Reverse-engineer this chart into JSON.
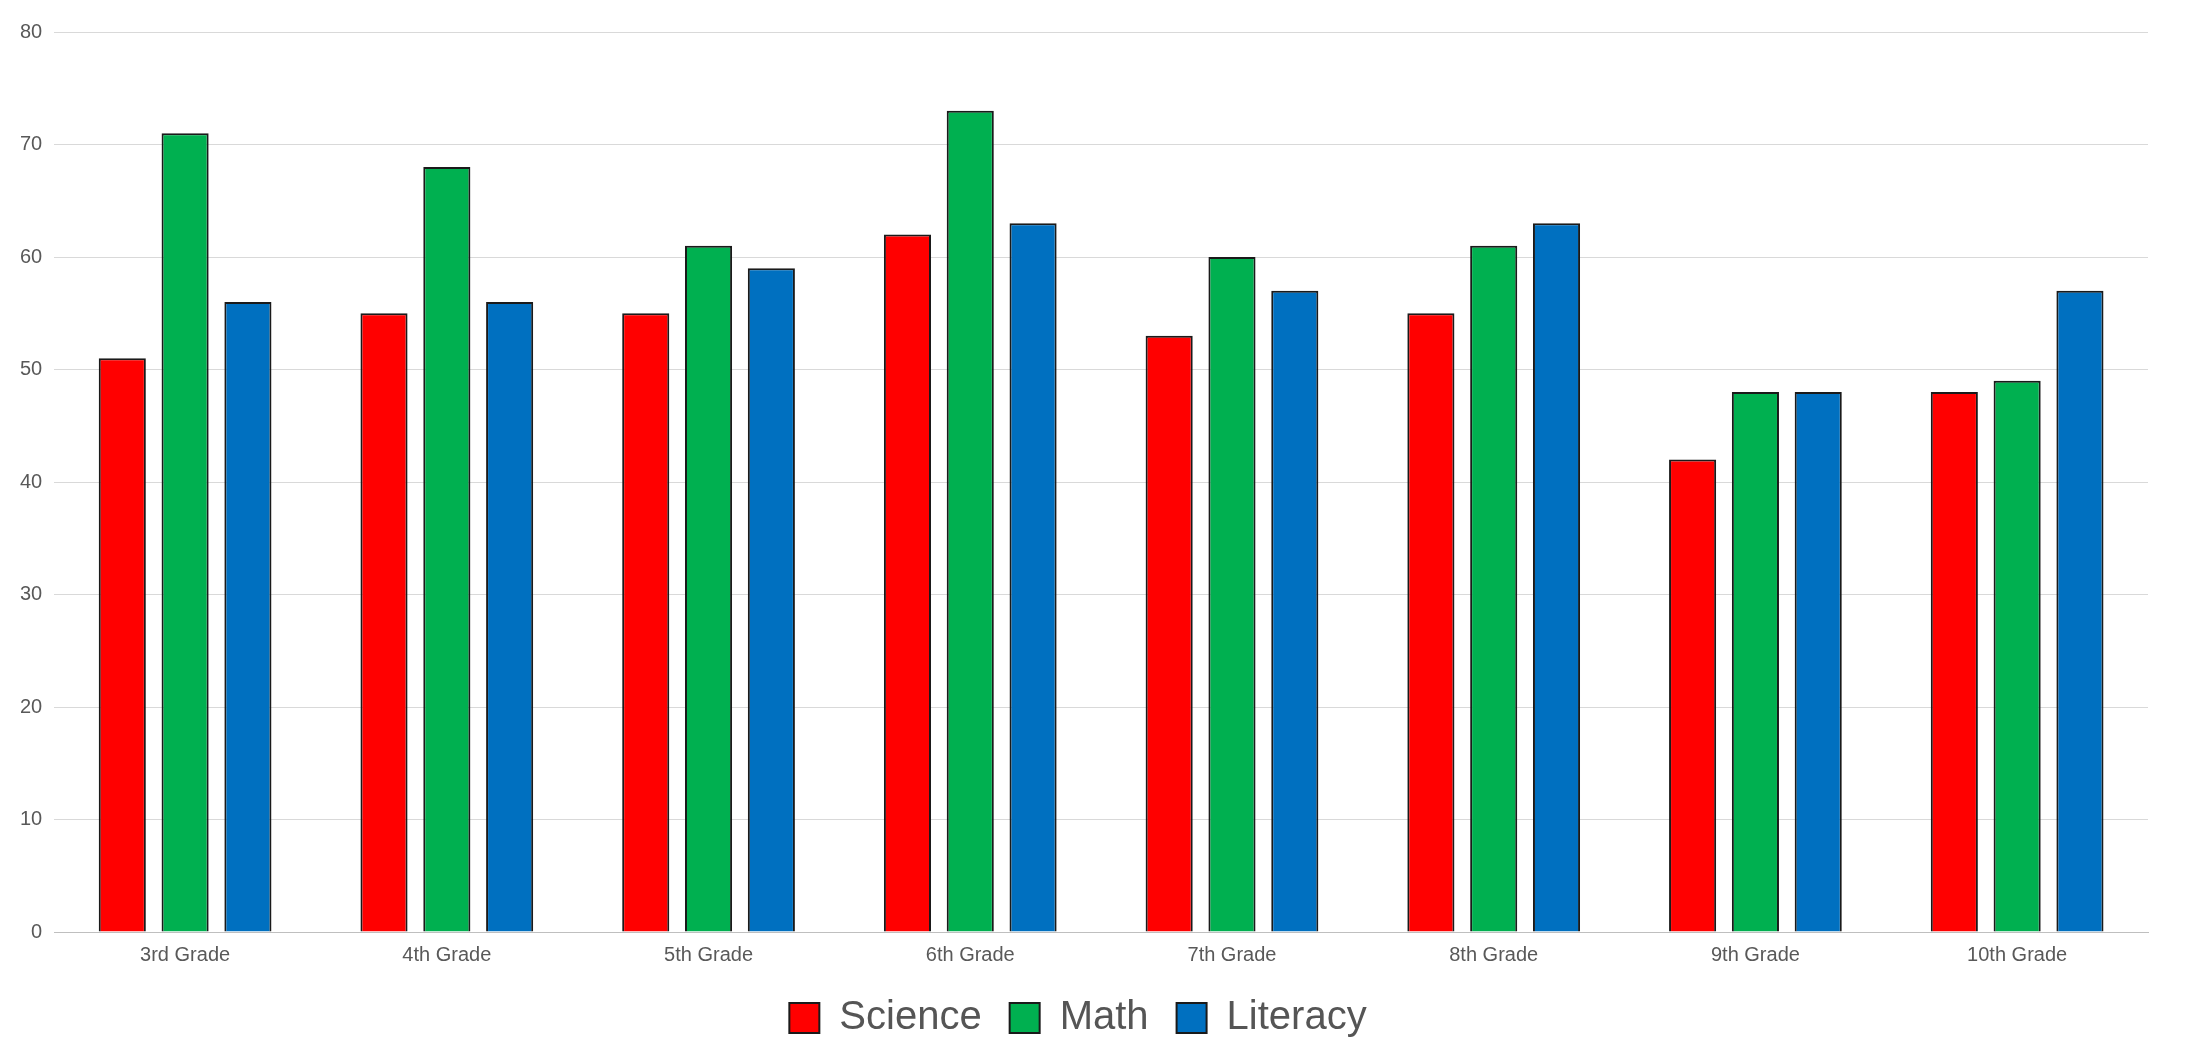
{
  "chart_data": {
    "type": "bar",
    "categories": [
      "3rd Grade",
      "4th Grade",
      "5th Grade",
      "6th Grade",
      "7th Grade",
      "8th Grade",
      "9th Grade",
      "10th Grade"
    ],
    "series": [
      {
        "name": "Science",
        "color": "#ff0000",
        "values": [
          51,
          55,
          55,
          62,
          53,
          55,
          42,
          48
        ]
      },
      {
        "name": "Math",
        "color": "#00b050",
        "values": [
          71,
          68,
          61,
          73,
          60,
          61,
          48,
          49
        ]
      },
      {
        "name": "Literacy",
        "color": "#0070c0",
        "values": [
          56,
          56,
          59,
          63,
          57,
          63,
          48,
          57
        ]
      }
    ],
    "ylim": [
      0,
      80
    ],
    "yticks": [
      0,
      10,
      20,
      30,
      40,
      50,
      60,
      70,
      80
    ],
    "grid": "y",
    "legend": "bottom"
  }
}
